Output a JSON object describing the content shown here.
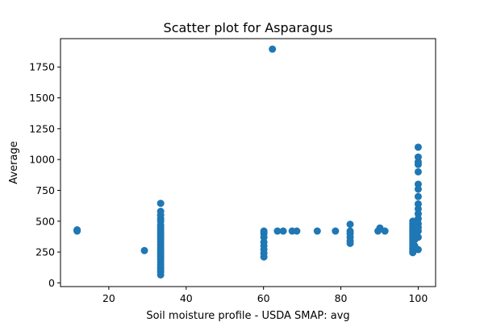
{
  "chart_data": {
    "type": "scatter",
    "title": "Scatter plot for Asparagus",
    "xlabel": "Soil moisture profile - USDA SMAP: avg",
    "ylabel": "Average",
    "xlim": [
      7.5,
      104.5
    ],
    "ylim": [
      -30,
      1980
    ],
    "xticks": [
      20,
      40,
      60,
      80,
      100
    ],
    "yticks": [
      0,
      250,
      500,
      750,
      1000,
      1250,
      1500,
      1750
    ],
    "grid": false,
    "legend": "none",
    "color": "#1f77b4",
    "points": [
      [
        11.8,
        420
      ],
      [
        11.8,
        425
      ],
      [
        11.8,
        430
      ],
      [
        29.2,
        262
      ],
      [
        33.4,
        645
      ],
      [
        33.4,
        580
      ],
      [
        33.4,
        550
      ],
      [
        33.4,
        520
      ],
      [
        33.4,
        500
      ],
      [
        33.4,
        470
      ],
      [
        33.4,
        450
      ],
      [
        33.4,
        430
      ],
      [
        33.4,
        410
      ],
      [
        33.4,
        390
      ],
      [
        33.4,
        370
      ],
      [
        33.4,
        350
      ],
      [
        33.4,
        330
      ],
      [
        33.4,
        310
      ],
      [
        33.4,
        290
      ],
      [
        33.4,
        270
      ],
      [
        33.4,
        250
      ],
      [
        33.4,
        230
      ],
      [
        33.4,
        210
      ],
      [
        33.4,
        190
      ],
      [
        33.4,
        170
      ],
      [
        33.4,
        150
      ],
      [
        33.4,
        130
      ],
      [
        33.4,
        110
      ],
      [
        33.4,
        90
      ],
      [
        33.4,
        65
      ],
      [
        60.1,
        420
      ],
      [
        60.1,
        400
      ],
      [
        60.1,
        370
      ],
      [
        60.1,
        330
      ],
      [
        60.1,
        300
      ],
      [
        60.1,
        270
      ],
      [
        60.1,
        240
      ],
      [
        60.1,
        210
      ],
      [
        62.3,
        1895
      ],
      [
        63.6,
        420
      ],
      [
        65.1,
        420
      ],
      [
        67.4,
        420
      ],
      [
        68.6,
        420
      ],
      [
        73.9,
        420
      ],
      [
        78.6,
        420
      ],
      [
        82.4,
        475
      ],
      [
        82.4,
        420
      ],
      [
        82.4,
        400
      ],
      [
        82.4,
        370
      ],
      [
        82.4,
        340
      ],
      [
        82.4,
        320
      ],
      [
        89.6,
        420
      ],
      [
        90.1,
        445
      ],
      [
        91.4,
        420
      ],
      [
        98.6,
        500
      ],
      [
        98.6,
        480
      ],
      [
        98.6,
        460
      ],
      [
        98.6,
        440
      ],
      [
        98.6,
        420
      ],
      [
        98.6,
        400
      ],
      [
        98.6,
        380
      ],
      [
        98.6,
        360
      ],
      [
        98.6,
        340
      ],
      [
        98.6,
        320
      ],
      [
        98.6,
        300
      ],
      [
        98.6,
        280
      ],
      [
        98.6,
        260
      ],
      [
        98.6,
        245
      ],
      [
        99.1,
        470
      ],
      [
        99.1,
        350
      ],
      [
        99.1,
        300
      ],
      [
        100.0,
        1100
      ],
      [
        100.0,
        1020
      ],
      [
        100.0,
        980
      ],
      [
        100.0,
        960
      ],
      [
        100.0,
        900
      ],
      [
        100.0,
        800
      ],
      [
        100.0,
        760
      ],
      [
        100.0,
        700
      ],
      [
        100.0,
        640
      ],
      [
        100.0,
        600
      ],
      [
        100.0,
        560
      ],
      [
        100.0,
        520
      ],
      [
        100.0,
        480
      ],
      [
        100.0,
        450
      ],
      [
        100.0,
        420
      ],
      [
        100.0,
        370
      ],
      [
        100.0,
        270
      ]
    ]
  }
}
